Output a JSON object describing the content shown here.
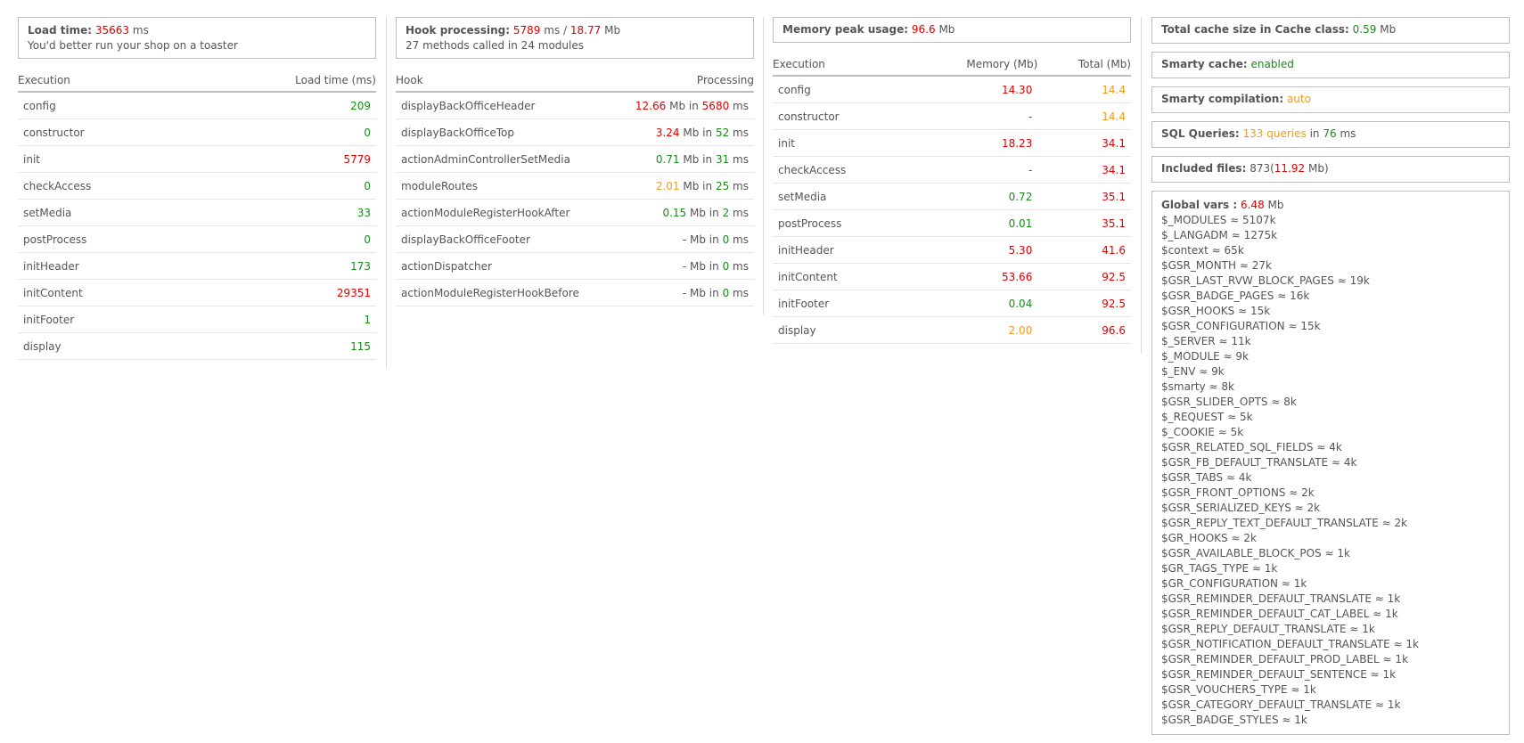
{
  "load": {
    "label": "Load time",
    "value": "35663",
    "unit": "ms",
    "note": "You'd better run your shop on a toaster"
  },
  "execution_table": {
    "headers": [
      "Execution",
      "Load time (ms)"
    ],
    "rows": [
      {
        "name": "config",
        "value": "209",
        "color": "green"
      },
      {
        "name": "constructor",
        "value": "0",
        "color": "green"
      },
      {
        "name": "init",
        "value": "5779",
        "color": "red"
      },
      {
        "name": "checkAccess",
        "value": "0",
        "color": "green"
      },
      {
        "name": "setMedia",
        "value": "33",
        "color": "green"
      },
      {
        "name": "postProcess",
        "value": "0",
        "color": "green"
      },
      {
        "name": "initHeader",
        "value": "173",
        "color": "green"
      },
      {
        "name": "initContent",
        "value": "29351",
        "color": "red"
      },
      {
        "name": "initFooter",
        "value": "1",
        "color": "green"
      },
      {
        "name": "display",
        "value": "115",
        "color": "green"
      }
    ]
  },
  "hooks": {
    "label": "Hook processing",
    "time": "5789",
    "time_unit": "ms",
    "sep": "/",
    "memory": "18.77",
    "memory_unit": "Mb",
    "summary": "27 methods called in 24 modules",
    "headers": [
      "Hook",
      "Processing"
    ],
    "rows": [
      {
        "name": "displayBackOfficeHeader",
        "mb": "12.66",
        "mb_color": "red",
        "ms": "5680",
        "ms_color": "red"
      },
      {
        "name": "displayBackOfficeTop",
        "mb": "3.24",
        "mb_color": "red",
        "ms": "52",
        "ms_color": "green"
      },
      {
        "name": "actionAdminControllerSetMedia",
        "mb": "0.71",
        "mb_color": "green",
        "ms": "31",
        "ms_color": "green"
      },
      {
        "name": "moduleRoutes",
        "mb": "2.01",
        "mb_color": "orange",
        "ms": "25",
        "ms_color": "green"
      },
      {
        "name": "actionModuleRegisterHookAfter",
        "mb": "0.15",
        "mb_color": "green",
        "ms": "2",
        "ms_color": "green"
      },
      {
        "name": "displayBackOfficeFooter",
        "mb": "-",
        "mb_color": "plain",
        "ms": "0",
        "ms_color": "green"
      },
      {
        "name": "actionDispatcher",
        "mb": "-",
        "mb_color": "plain",
        "ms": "0",
        "ms_color": "green"
      },
      {
        "name": "actionModuleRegisterHookBefore",
        "mb": "-",
        "mb_color": "plain",
        "ms": "0",
        "ms_color": "green"
      }
    ],
    "mb_in_label": "Mb in",
    "ms_label": "ms"
  },
  "memory": {
    "label": "Memory peak usage",
    "value": "96.6",
    "unit": "Mb",
    "headers": [
      "Execution",
      "Memory (Mb)",
      "Total (Mb)"
    ],
    "rows": [
      {
        "name": "config",
        "mem": "14.30",
        "mem_color": "red",
        "total": "14.4",
        "total_color": "orange"
      },
      {
        "name": "constructor",
        "mem": "-",
        "mem_color": "plain",
        "total": "14.4",
        "total_color": "orange"
      },
      {
        "name": "init",
        "mem": "18.23",
        "mem_color": "red",
        "total": "34.1",
        "total_color": "red"
      },
      {
        "name": "checkAccess",
        "mem": "-",
        "mem_color": "plain",
        "total": "34.1",
        "total_color": "red"
      },
      {
        "name": "setMedia",
        "mem": "0.72",
        "mem_color": "green",
        "total": "35.1",
        "total_color": "red"
      },
      {
        "name": "postProcess",
        "mem": "0.01",
        "mem_color": "green",
        "total": "35.1",
        "total_color": "red"
      },
      {
        "name": "initHeader",
        "mem": "5.30",
        "mem_color": "red",
        "total": "41.6",
        "total_color": "red"
      },
      {
        "name": "initContent",
        "mem": "53.66",
        "mem_color": "red",
        "total": "92.5",
        "total_color": "red"
      },
      {
        "name": "initFooter",
        "mem": "0.04",
        "mem_color": "green",
        "total": "92.5",
        "total_color": "red"
      },
      {
        "name": "display",
        "mem": "2.00",
        "mem_color": "orange",
        "total": "96.6",
        "total_color": "red"
      }
    ]
  },
  "cache": {
    "label": "Total cache size in Cache class",
    "value": "0.59",
    "unit": "Mb"
  },
  "smarty_cache": {
    "label": "Smarty cache",
    "value": "enabled"
  },
  "smarty_compilation": {
    "label": "Smarty compilation",
    "value": "auto"
  },
  "sql": {
    "label": "SQL Queries",
    "queries": "133 queries",
    "in": "in",
    "time": "76",
    "unit": "ms"
  },
  "included_files": {
    "label": "Included files",
    "count": "873",
    "open": "(",
    "size": "11.92",
    "unit": "Mb)"
  },
  "globals": {
    "label": "Global vars :",
    "value": "6.48",
    "unit": "Mb",
    "items": [
      "$_MODULES ≈ 5107k",
      "$_LANGADM ≈ 1275k",
      "$context ≈ 65k",
      "$GSR_MONTH ≈ 27k",
      "$GSR_LAST_RVW_BLOCK_PAGES ≈ 19k",
      "$GSR_BADGE_PAGES ≈ 16k",
      "$GSR_HOOKS ≈ 15k",
      "$GSR_CONFIGURATION ≈ 15k",
      "$_SERVER ≈ 11k",
      "$_MODULE ≈ 9k",
      "$_ENV ≈ 9k",
      "$smarty ≈ 8k",
      "$GSR_SLIDER_OPTS ≈ 8k",
      "$_REQUEST ≈ 5k",
      "$_COOKIE ≈ 5k",
      "$GSR_RELATED_SQL_FIELDS ≈ 4k",
      "$GSR_FB_DEFAULT_TRANSLATE ≈ 4k",
      "$GSR_TABS ≈ 4k",
      "$GSR_FRONT_OPTIONS ≈ 2k",
      "$GSR_SERIALIZED_KEYS ≈ 2k",
      "$GSR_REPLY_TEXT_DEFAULT_TRANSLATE ≈ 2k",
      "$GR_HOOKS ≈ 2k",
      "$GSR_AVAILABLE_BLOCK_POS ≈ 1k",
      "$GR_TAGS_TYPE ≈ 1k",
      "$GR_CONFIGURATION ≈ 1k",
      "$GSR_REMINDER_DEFAULT_TRANSLATE ≈ 1k",
      "$GSR_REMINDER_DEFAULT_CAT_LABEL ≈ 1k",
      "$GSR_REPLY_DEFAULT_TRANSLATE ≈ 1k",
      "$GSR_NOTIFICATION_DEFAULT_TRANSLATE ≈ 1k",
      "$GSR_REMINDER_DEFAULT_PROD_LABEL ≈ 1k",
      "$GSR_REMINDER_DEFAULT_SENTENCE ≈ 1k",
      "$GSR_VOUCHERS_TYPE ≈ 1k",
      "$GSR_CATEGORY_DEFAULT_TRANSLATE ≈ 1k",
      "$GSR_BADGE_STYLES ≈ 1k"
    ]
  },
  "colors": {
    "red": "#e00000",
    "green": "#1a8c1a",
    "orange": "#f29a1f",
    "border": "#bdbdbd"
  }
}
